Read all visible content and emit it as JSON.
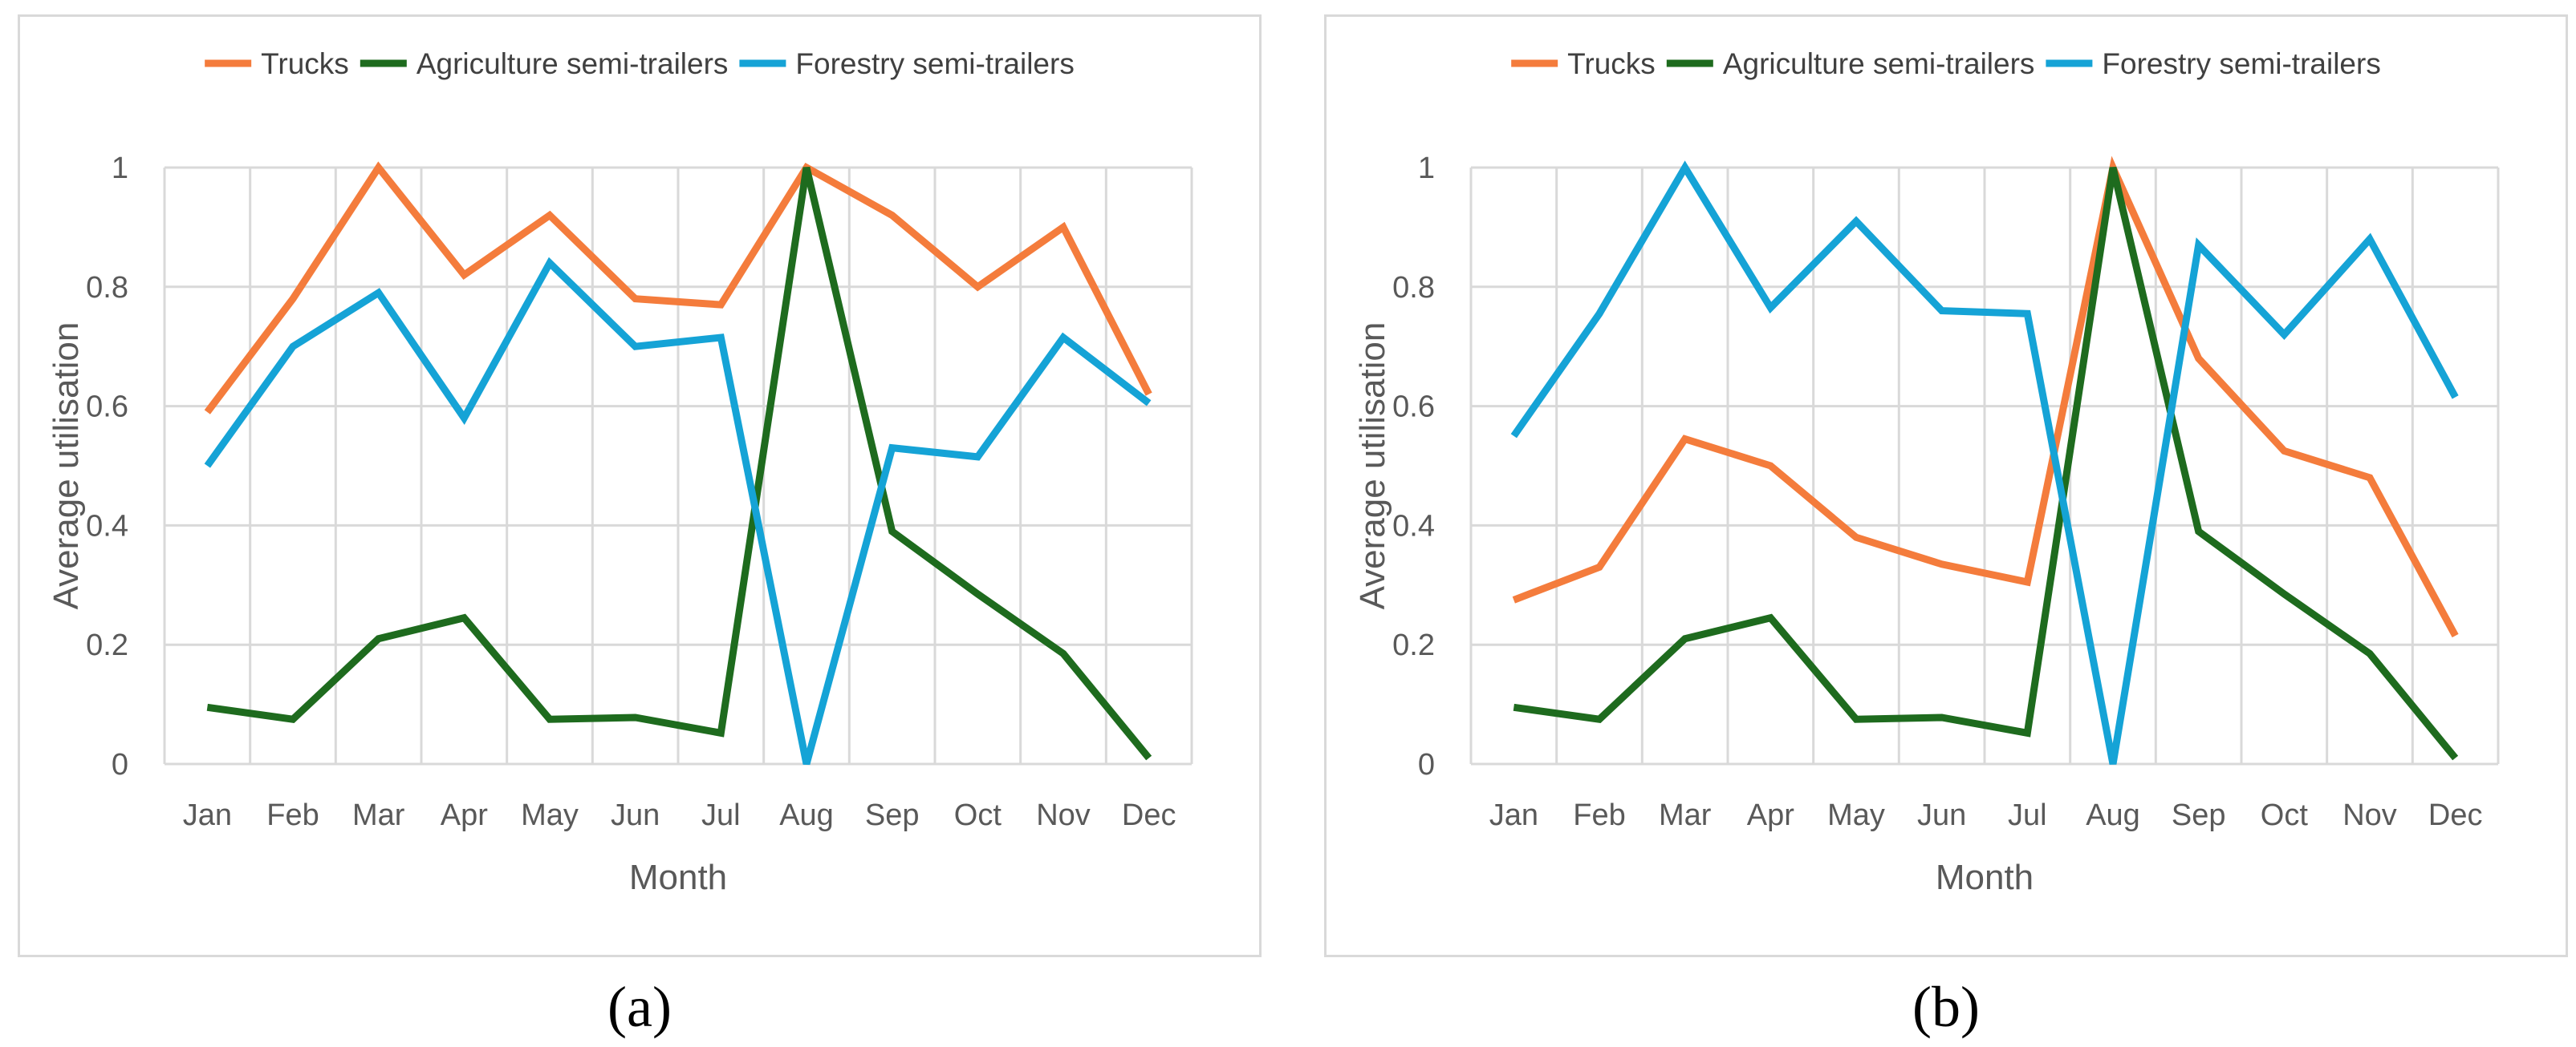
{
  "chart_data": [
    {
      "type": "line",
      "panel_label": "a",
      "caption": "(a)",
      "xlabel": "Month",
      "ylabel": "Average utilisation",
      "ylim": [
        0,
        1
      ],
      "yticks": [
        "0",
        "0.2",
        "0.4",
        "0.6",
        "0.8",
        "1"
      ],
      "grid": true,
      "legend": "top-center",
      "categories": [
        "Jan",
        "Feb",
        "Mar",
        "Apr",
        "May",
        "Jun",
        "Jul",
        "Aug",
        "Sep",
        "Oct",
        "Nov",
        "Dec"
      ],
      "series": [
        {
          "name": "Trucks",
          "color": "#f47c3c",
          "values": [
            0.59,
            0.78,
            1.0,
            0.82,
            0.92,
            0.78,
            0.77,
            1.0,
            0.92,
            0.8,
            0.9,
            0.62
          ]
        },
        {
          "name": "Agriculture semi-trailers",
          "color": "#1e6b1e",
          "values": [
            0.095,
            0.075,
            0.21,
            0.245,
            0.075,
            0.078,
            0.052,
            1.0,
            0.39,
            0.285,
            0.185,
            0.01
          ]
        },
        {
          "name": "Forestry semi-trailers",
          "color": "#15a3d6",
          "values": [
            0.5,
            0.7,
            0.79,
            0.58,
            0.84,
            0.7,
            0.715,
            0.0,
            0.53,
            0.515,
            0.715,
            0.605
          ]
        }
      ]
    },
    {
      "type": "line",
      "panel_label": "b",
      "caption": "(b)",
      "xlabel": "Month",
      "ylabel": "Average utilisation",
      "ylim": [
        0,
        1
      ],
      "yticks": [
        "0",
        "0.2",
        "0.4",
        "0.6",
        "0.8",
        "1"
      ],
      "grid": true,
      "legend": "top-center",
      "categories": [
        "Jan",
        "Feb",
        "Mar",
        "Apr",
        "May",
        "Jun",
        "Jul",
        "Aug",
        "Sep",
        "Oct",
        "Nov",
        "Dec"
      ],
      "series": [
        {
          "name": "Trucks",
          "color": "#f47c3c",
          "values": [
            0.275,
            0.33,
            0.545,
            0.5,
            0.38,
            0.335,
            0.305,
            1.0,
            0.68,
            0.525,
            0.48,
            0.215
          ]
        },
        {
          "name": "Agriculture semi-trailers",
          "color": "#1e6b1e",
          "values": [
            0.095,
            0.075,
            0.21,
            0.245,
            0.075,
            0.078,
            0.052,
            1.0,
            0.39,
            0.285,
            0.185,
            0.01
          ]
        },
        {
          "name": "Forestry semi-trailers",
          "color": "#15a3d6",
          "values": [
            0.55,
            0.755,
            1.0,
            0.765,
            0.91,
            0.76,
            0.755,
            0.0,
            0.87,
            0.72,
            0.88,
            0.615
          ]
        }
      ]
    }
  ]
}
